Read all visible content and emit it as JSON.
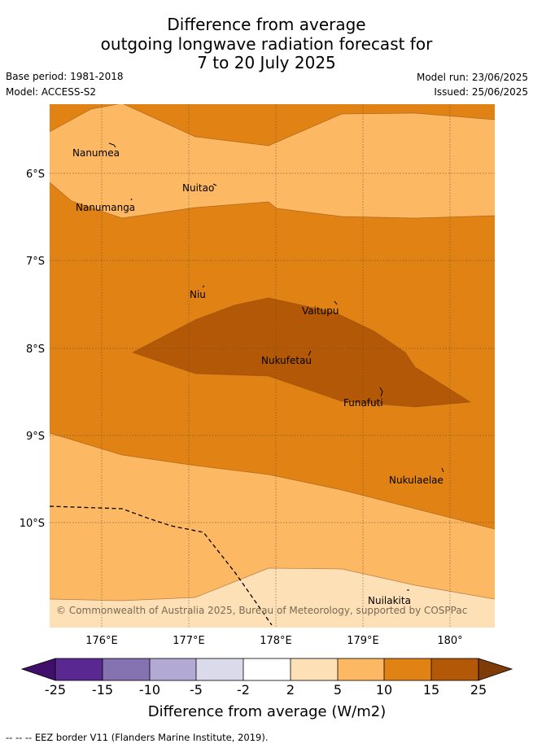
{
  "title": {
    "line1": "Difference from average",
    "line2": "outgoing longwave radiation forecast for",
    "line3": "7 to 20 July 2025"
  },
  "meta": {
    "base_period": "Base period: 1981-2018",
    "model": "Model: ACCESS-S2",
    "model_run": "Model run: 23/06/2025",
    "issued": "Issued: 25/06/2025"
  },
  "map": {
    "x_ticks": [
      "176°E",
      "177°E",
      "178°E",
      "179°E",
      "180°"
    ],
    "y_ticks": [
      "6°S",
      "7°S",
      "8°S",
      "9°S",
      "10°S"
    ],
    "places": [
      "Nanumea",
      "Nuitao",
      "Nanumanga",
      "Niu",
      "Vaitupu",
      "Nukufetau",
      "Funafuti",
      "Nukulaelae",
      "Nuilakita"
    ],
    "copyright": "© Commonwealth of Australia 2025, Bureau of Meteorology, supported by COSPPac"
  },
  "colorbar": {
    "tick_labels": [
      "-25",
      "-15",
      "-10",
      "-5",
      "-2",
      "2",
      "5",
      "10",
      "15",
      "25"
    ],
    "label": "Difference from average (W/m2)",
    "colors": [
      "#3f0f6b",
      "#5a2891",
      "#8572b0",
      "#b2a9d4",
      "#dadaeb",
      "#ffffff",
      "#fee0b6",
      "#fdb863",
      "#e08214",
      "#b35806",
      "#7f3b08"
    ]
  },
  "footer": "-- -- -- EEZ border V11 (Flanders Marine Institute, 2019)."
}
